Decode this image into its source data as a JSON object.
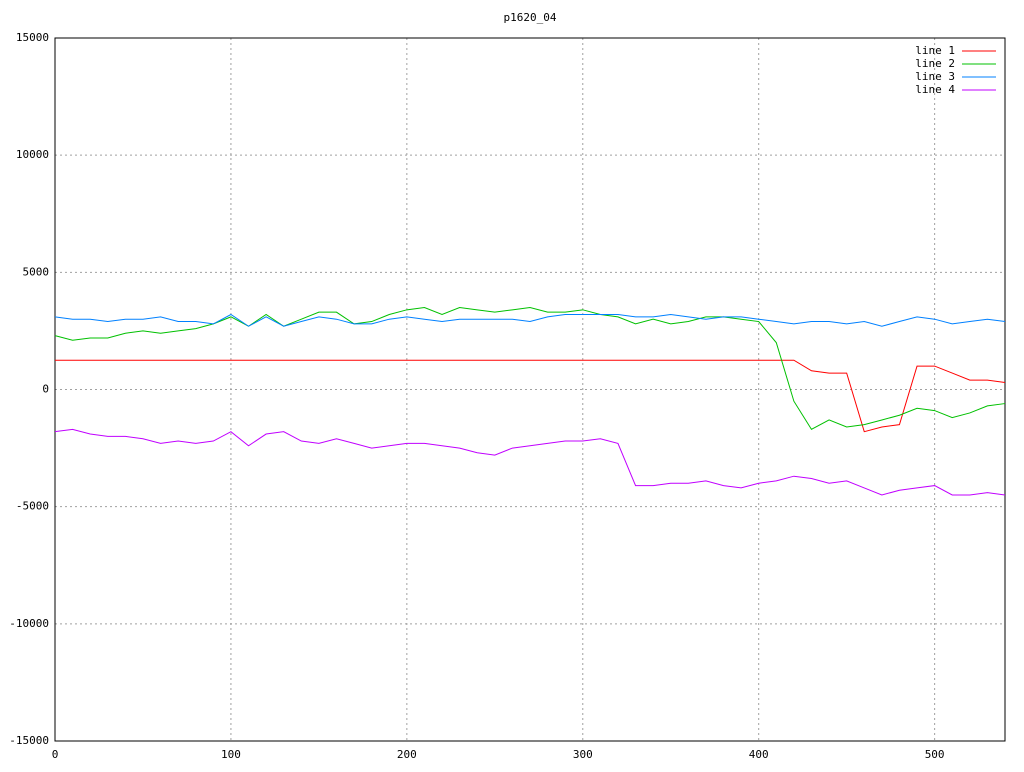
{
  "chart_data": {
    "type": "line",
    "title": "p1620_04",
    "x": [
      0,
      10,
      20,
      30,
      40,
      50,
      60,
      70,
      80,
      90,
      100,
      110,
      120,
      130,
      140,
      150,
      160,
      170,
      180,
      190,
      200,
      210,
      220,
      230,
      240,
      250,
      260,
      270,
      280,
      290,
      300,
      310,
      320,
      330,
      340,
      350,
      360,
      370,
      380,
      390,
      400,
      410,
      420,
      430,
      440,
      450,
      460,
      470,
      480,
      490,
      500,
      510,
      520,
      530,
      540
    ],
    "series": [
      {
        "name": "line 1",
        "color": "#ff0000",
        "values": [
          1250,
          1250,
          1250,
          1250,
          1250,
          1250,
          1250,
          1250,
          1250,
          1250,
          1250,
          1250,
          1250,
          1250,
          1250,
          1250,
          1250,
          1250,
          1250,
          1250,
          1250,
          1250,
          1250,
          1250,
          1250,
          1250,
          1250,
          1250,
          1250,
          1250,
          1250,
          1250,
          1250,
          1250,
          1250,
          1250,
          1250,
          1250,
          1250,
          1250,
          1250,
          1250,
          1250,
          800,
          700,
          700,
          -1800,
          -1600,
          -1500,
          1000,
          1000,
          700,
          400,
          400,
          300
        ]
      },
      {
        "name": "line 2",
        "color": "#00c000",
        "values": [
          2300,
          2100,
          2200,
          2200,
          2400,
          2500,
          2400,
          2500,
          2600,
          2800,
          3100,
          2700,
          3200,
          2700,
          3000,
          3300,
          3300,
          2800,
          2900,
          3200,
          3400,
          3500,
          3200,
          3500,
          3400,
          3300,
          3400,
          3500,
          3300,
          3300,
          3400,
          3200,
          3100,
          2800,
          3000,
          2800,
          2900,
          3100,
          3100,
          3000,
          2900,
          2000,
          -500,
          -1700,
          -1300,
          -1600,
          -1500,
          -1300,
          -1100,
          -800,
          -900,
          -1200,
          -1000,
          -700,
          -600
        ]
      },
      {
        "name": "line 3",
        "color": "#0080ff",
        "values": [
          3100,
          3000,
          3000,
          2900,
          3000,
          3000,
          3100,
          2900,
          2900,
          2800,
          3200,
          2700,
          3100,
          2700,
          2900,
          3100,
          3000,
          2800,
          2800,
          3000,
          3100,
          3000,
          2900,
          3000,
          3000,
          3000,
          3000,
          2900,
          3100,
          3200,
          3200,
          3200,
          3200,
          3100,
          3100,
          3200,
          3100,
          3000,
          3100,
          3100,
          3000,
          2900,
          2800,
          2900,
          2900,
          2800,
          2900,
          2700,
          2900,
          3100,
          3000,
          2800,
          2900,
          3000,
          2900
        ]
      },
      {
        "name": "line 4",
        "color": "#c000ff",
        "values": [
          -1800,
          -1700,
          -1900,
          -2000,
          -2000,
          -2100,
          -2300,
          -2200,
          -2300,
          -2200,
          -1800,
          -2400,
          -1900,
          -1800,
          -2200,
          -2300,
          -2100,
          -2300,
          -2500,
          -2400,
          -2300,
          -2300,
          -2400,
          -2500,
          -2700,
          -2800,
          -2500,
          -2400,
          -2300,
          -2200,
          -2200,
          -2100,
          -2300,
          -4100,
          -4100,
          -4000,
          -4000,
          -3900,
          -4100,
          -4200,
          -4000,
          -3900,
          -3700,
          -3800,
          -4000,
          -3900,
          -4200,
          -4500,
          -4300,
          -4200,
          -4100,
          -4500,
          -4500,
          -4400,
          -4500
        ]
      }
    ],
    "xlim": [
      0,
      540
    ],
    "xticks": [
      0,
      100,
      200,
      300,
      400,
      500
    ],
    "ylim": [
      -15000,
      15000
    ],
    "yticks": [
      -15000,
      -10000,
      -5000,
      0,
      5000,
      10000,
      15000
    ],
    "grid": true,
    "legend": "upper right"
  }
}
